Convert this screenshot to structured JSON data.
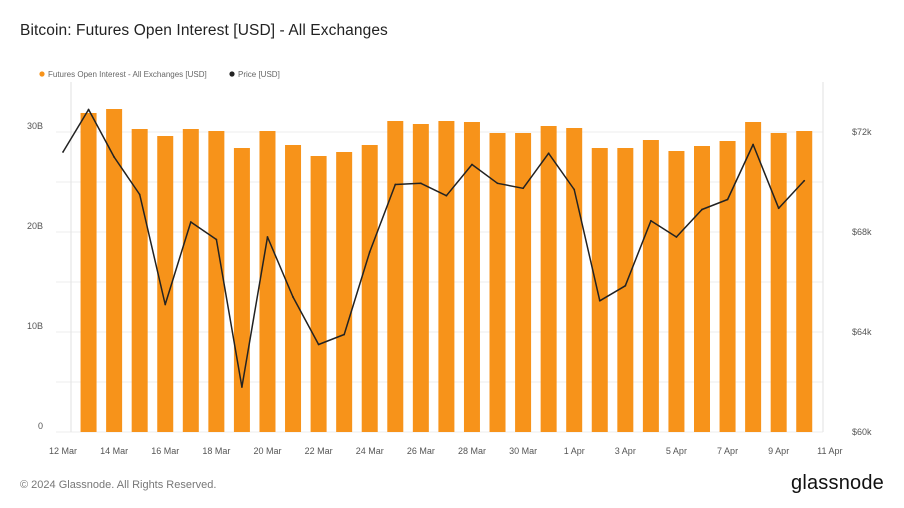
{
  "title": "Bitcoin: Futures Open Interest [USD] - All Exchanges",
  "footer": {
    "copyright": "© 2024 Glassnode. All Rights Reserved.",
    "brand": "glassnode"
  },
  "colors": {
    "bar": "#f7931a",
    "line": "#222222",
    "grid": "#eeeeee"
  },
  "chart_data": {
    "type": "bar",
    "title": "Bitcoin: Futures Open Interest [USD] - All Exchanges",
    "legend_position": "top-left",
    "grid": true,
    "x_tick_labels": [
      "12 Mar",
      "14 Mar",
      "16 Mar",
      "18 Mar",
      "20 Mar",
      "22 Mar",
      "24 Mar",
      "26 Mar",
      "28 Mar",
      "30 Mar",
      "1 Apr",
      "3 Apr",
      "5 Apr",
      "7 Apr",
      "9 Apr",
      "11 Apr"
    ],
    "y_left": {
      "ticks": [
        "0",
        "10B",
        "20B",
        "30B"
      ],
      "tick_values": [
        0,
        10,
        20,
        30
      ],
      "range": [
        0,
        35
      ],
      "unit": "B"
    },
    "y_right": {
      "ticks": [
        "$60k",
        "$64k",
        "$68k",
        "$72k"
      ],
      "tick_values": [
        60000,
        64000,
        68000,
        72000
      ],
      "range": [
        60000,
        74000
      ]
    },
    "categories": [
      "13 Mar",
      "14 Mar",
      "15 Mar",
      "16 Mar",
      "17 Mar",
      "18 Mar",
      "19 Mar",
      "20 Mar",
      "21 Mar",
      "22 Mar",
      "23 Mar",
      "24 Mar",
      "25 Mar",
      "26 Mar",
      "27 Mar",
      "28 Mar",
      "29 Mar",
      "30 Mar",
      "31 Mar",
      "1 Apr",
      "2 Apr",
      "3 Apr",
      "4 Apr",
      "5 Apr",
      "6 Apr",
      "7 Apr",
      "8 Apr",
      "9 Apr",
      "10 Apr"
    ],
    "series": [
      {
        "name": "Futures Open Interest - All Exchanges [USD]",
        "axis": "left",
        "kind": "bar",
        "x": [
          "13 Mar",
          "14 Mar",
          "15 Mar",
          "16 Mar",
          "17 Mar",
          "18 Mar",
          "19 Mar",
          "20 Mar",
          "21 Mar",
          "22 Mar",
          "23 Mar",
          "24 Mar",
          "25 Mar",
          "26 Mar",
          "27 Mar",
          "28 Mar",
          "29 Mar",
          "30 Mar",
          "31 Mar",
          "1 Apr",
          "2 Apr",
          "3 Apr",
          "4 Apr",
          "5 Apr",
          "6 Apr",
          "7 Apr",
          "8 Apr",
          "9 Apr",
          "10 Apr"
        ],
        "values": [
          31.9,
          32.3,
          30.3,
          29.6,
          30.3,
          30.1,
          28.4,
          30.1,
          28.7,
          27.6,
          28.0,
          28.7,
          31.1,
          30.8,
          31.1,
          31.0,
          29.9,
          29.9,
          30.6,
          30.4,
          28.4,
          28.4,
          29.2,
          28.1,
          28.6,
          29.1,
          31.0,
          29.9,
          30.1
        ]
      },
      {
        "name": "Price [USD]",
        "axis": "right",
        "kind": "line",
        "x": [
          "12 Mar",
          "13 Mar",
          "14 Mar",
          "15 Mar",
          "16 Mar",
          "17 Mar",
          "18 Mar",
          "19 Mar",
          "20 Mar",
          "21 Mar",
          "22 Mar",
          "23 Mar",
          "24 Mar",
          "25 Mar",
          "26 Mar",
          "27 Mar",
          "28 Mar",
          "29 Mar",
          "30 Mar",
          "31 Mar",
          "1 Apr",
          "2 Apr",
          "3 Apr",
          "4 Apr",
          "5 Apr",
          "6 Apr",
          "7 Apr",
          "8 Apr",
          "9 Apr",
          "10 Apr"
        ],
        "values": [
          71200,
          72900,
          71000,
          69500,
          65100,
          68400,
          67700,
          61800,
          67800,
          65400,
          63500,
          63900,
          67200,
          69900,
          69950,
          69450,
          70700,
          69950,
          69750,
          71150,
          69700,
          65250,
          65850,
          68450,
          67800,
          68900,
          69300,
          71500,
          68950,
          70050
        ]
      }
    ]
  }
}
